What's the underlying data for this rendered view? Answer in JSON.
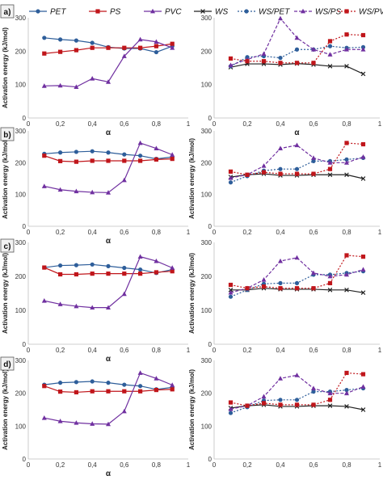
{
  "legend_left": {
    "items": [
      {
        "label": "PET",
        "color": "#2E5E9A",
        "marker": "circle",
        "dash": "solid"
      },
      {
        "label": "PS",
        "color": "#C0161B",
        "marker": "square",
        "dash": "solid"
      },
      {
        "label": "PVC",
        "color": "#7030A0",
        "marker": "triangle",
        "dash": "solid"
      }
    ]
  },
  "legend_right": {
    "items": [
      {
        "label": "WS",
        "color": "#222222",
        "marker": "x",
        "dash": "solid"
      },
      {
        "label": "WS/PET",
        "color": "#2E5E9A",
        "marker": "circle",
        "dash": "dotted"
      },
      {
        "label": "WS/PS",
        "color": "#7030A0",
        "marker": "triangle",
        "dash": "dashed"
      },
      {
        "label": "WS/PVC",
        "color": "#C0161B",
        "marker": "square",
        "dash": "dotted"
      }
    ]
  },
  "chart_data": [
    {
      "panel": "a)",
      "side": "left",
      "type": "line",
      "ylabel": "Activation energy (kJ/mol)",
      "xlabel": "α",
      "xlim": [
        0,
        1
      ],
      "ylim": [
        0,
        300
      ],
      "xticks": [
        "0",
        "0,2",
        "0,4",
        "0,6",
        "0,8",
        "1"
      ],
      "yticks": [
        "0",
        "100",
        "200",
        "300"
      ],
      "x": [
        0.1,
        0.2,
        0.3,
        0.4,
        0.5,
        0.6,
        0.7,
        0.8,
        0.9
      ],
      "series": [
        {
          "name": "PET",
          "values": [
            240,
            235,
            232,
            225,
            212,
            208,
            208,
            197,
            215
          ]
        },
        {
          "name": "PS",
          "values": [
            193,
            198,
            203,
            210,
            210,
            210,
            210,
            215,
            222
          ]
        },
        {
          "name": "PVC",
          "values": [
            96,
            97,
            93,
            118,
            108,
            185,
            235,
            228,
            210
          ]
        }
      ]
    },
    {
      "panel": "a)",
      "side": "right",
      "type": "line",
      "ylabel": "",
      "xlabel": "α",
      "xlim": [
        0,
        1
      ],
      "ylim": [
        0,
        300
      ],
      "xticks": [
        "0",
        "0,2",
        "0,4",
        "0,6",
        "0,8",
        "1"
      ],
      "yticks": [
        "0",
        "100",
        "200",
        "300"
      ],
      "x": [
        0.1,
        0.2,
        0.3,
        0.4,
        0.5,
        0.6,
        0.7,
        0.8,
        0.9
      ],
      "series": [
        {
          "name": "WS",
          "values": [
            152,
            162,
            162,
            160,
            163,
            160,
            155,
            155,
            132
          ]
        },
        {
          "name": "WS/PET",
          "values": [
            155,
            182,
            185,
            180,
            205,
            205,
            215,
            210,
            212
          ]
        },
        {
          "name": "WS/PS",
          "values": [
            158,
            175,
            192,
            298,
            240,
            205,
            190,
            205,
            205
          ]
        },
        {
          "name": "WS/PVC",
          "values": [
            178,
            170,
            170,
            165,
            165,
            165,
            230,
            250,
            248
          ]
        }
      ]
    },
    {
      "panel": "b)",
      "side": "left",
      "type": "line",
      "ylabel": "Activation energy (kJ/mol)",
      "xlabel": "α",
      "xlim": [
        0,
        1
      ],
      "ylim": [
        0,
        300
      ],
      "xticks": [
        "0",
        "0,2",
        "0,4",
        "0,6",
        "0,8",
        "1"
      ],
      "yticks": [
        "0",
        "100",
        "200",
        "300"
      ],
      "x": [
        0.1,
        0.2,
        0.3,
        0.4,
        0.5,
        0.6,
        0.7,
        0.8,
        0.9
      ],
      "series": [
        {
          "name": "PET",
          "values": [
            228,
            232,
            234,
            236,
            232,
            226,
            222,
            212,
            218
          ]
        },
        {
          "name": "PS",
          "values": [
            222,
            205,
            203,
            206,
            206,
            206,
            206,
            210,
            212
          ]
        },
        {
          "name": "PVC",
          "values": [
            126,
            115,
            110,
            107,
            106,
            145,
            262,
            245,
            225
          ]
        }
      ]
    },
    {
      "panel": "b)",
      "side": "right",
      "type": "line",
      "ylabel": "Activation energy (kJ/mol)",
      "xlabel": "",
      "xlim": [
        0,
        1
      ],
      "ylim": [
        0,
        300
      ],
      "xticks": [
        "0",
        "0,2",
        "0,4",
        "0,6",
        "0,8",
        "1"
      ],
      "yticks": [
        "0",
        "100",
        "200",
        "300"
      ],
      "x": [
        0.1,
        0.2,
        0.3,
        0.4,
        0.5,
        0.6,
        0.7,
        0.8,
        0.9
      ],
      "series": [
        {
          "name": "WS",
          "values": [
            155,
            162,
            165,
            160,
            160,
            162,
            162,
            162,
            150
          ]
        },
        {
          "name": "WS/PET",
          "values": [
            138,
            158,
            175,
            180,
            180,
            205,
            205,
            210,
            215
          ]
        },
        {
          "name": "WS/PS",
          "values": [
            152,
            162,
            190,
            245,
            255,
            215,
            200,
            200,
            218
          ]
        },
        {
          "name": "WS/PVC",
          "values": [
            172,
            162,
            170,
            165,
            165,
            165,
            180,
            262,
            258
          ]
        }
      ]
    },
    {
      "panel": "c)",
      "side": "left",
      "type": "line",
      "ylabel": "Activation energy (kJ/mol)",
      "xlabel": "α",
      "xlim": [
        0,
        1
      ],
      "ylim": [
        0,
        300
      ],
      "xticks": [
        "0",
        "0,2",
        "0,4",
        "0,6",
        "0,8",
        "1"
      ],
      "yticks": [
        "0",
        "100",
        "200",
        "300"
      ],
      "x": [
        0.1,
        0.2,
        0.3,
        0.4,
        0.5,
        0.6,
        0.7,
        0.8,
        0.9
      ],
      "series": [
        {
          "name": "PET",
          "values": [
            226,
            232,
            233,
            235,
            230,
            225,
            220,
            210,
            220
          ]
        },
        {
          "name": "PS",
          "values": [
            226,
            206,
            206,
            208,
            208,
            208,
            208,
            212,
            215
          ]
        },
        {
          "name": "PVC",
          "values": [
            128,
            118,
            112,
            108,
            108,
            148,
            258,
            245,
            225
          ]
        }
      ]
    },
    {
      "panel": "c)",
      "side": "right",
      "type": "line",
      "ylabel": "Activation energy (kJ/mol)",
      "xlabel": "",
      "xlim": [
        0,
        1
      ],
      "ylim": [
        0,
        300
      ],
      "xticks": [
        "0",
        "0,2",
        "0,4",
        "0,6",
        "0,8",
        "1"
      ],
      "yticks": [
        "0",
        "100",
        "200",
        "300"
      ],
      "x": [
        0.1,
        0.2,
        0.3,
        0.4,
        0.5,
        0.6,
        0.7,
        0.8,
        0.9
      ],
      "series": [
        {
          "name": "WS",
          "values": [
            160,
            160,
            165,
            162,
            162,
            162,
            160,
            160,
            152
          ]
        },
        {
          "name": "WS/PET",
          "values": [
            140,
            160,
            178,
            180,
            180,
            205,
            205,
            210,
            215
          ]
        },
        {
          "name": "WS/PS",
          "values": [
            152,
            165,
            190,
            245,
            255,
            210,
            200,
            205,
            220
          ]
        },
        {
          "name": "WS/PVC",
          "values": [
            175,
            165,
            170,
            165,
            165,
            165,
            180,
            262,
            258
          ]
        }
      ]
    },
    {
      "panel": "d)",
      "side": "left",
      "type": "line",
      "ylabel": "Activation energy (kJ/mol)",
      "xlabel": "α",
      "xlim": [
        0,
        1
      ],
      "ylim": [
        0,
        300
      ],
      "xticks": [
        "0",
        "0,2",
        "0,4",
        "0,6",
        "0,8",
        "1"
      ],
      "yticks": [
        "0",
        "100",
        "200",
        "300"
      ],
      "x": [
        0.1,
        0.2,
        0.3,
        0.4,
        0.5,
        0.6,
        0.7,
        0.8,
        0.9
      ],
      "series": [
        {
          "name": "PET",
          "values": [
            226,
            232,
            234,
            236,
            232,
            226,
            222,
            212,
            218
          ]
        },
        {
          "name": "PS",
          "values": [
            222,
            205,
            203,
            206,
            206,
            206,
            206,
            210,
            212
          ]
        },
        {
          "name": "PVC",
          "values": [
            125,
            115,
            110,
            107,
            106,
            145,
            262,
            245,
            225
          ]
        }
      ]
    },
    {
      "panel": "d)",
      "side": "right",
      "type": "line",
      "ylabel": "Activation energy (kJ/mol)",
      "xlabel": "",
      "xlim": [
        0,
        1
      ],
      "ylim": [
        0,
        300
      ],
      "xticks": [
        "0",
        "0,2",
        "0,4",
        "0,6",
        "0,8",
        "1"
      ],
      "yticks": [
        "0",
        "100",
        "200",
        "300"
      ],
      "x": [
        0.1,
        0.2,
        0.3,
        0.4,
        0.5,
        0.6,
        0.7,
        0.8,
        0.9
      ],
      "series": [
        {
          "name": "WS",
          "values": [
            155,
            162,
            165,
            160,
            160,
            162,
            162,
            160,
            150
          ]
        },
        {
          "name": "WS/PET",
          "values": [
            140,
            158,
            178,
            180,
            180,
            205,
            205,
            210,
            215
          ]
        },
        {
          "name": "WS/PS",
          "values": [
            152,
            162,
            190,
            245,
            255,
            215,
            200,
            200,
            220
          ]
        },
        {
          "name": "WS/PVC",
          "values": [
            172,
            162,
            170,
            165,
            165,
            165,
            180,
            262,
            258
          ]
        }
      ]
    }
  ]
}
